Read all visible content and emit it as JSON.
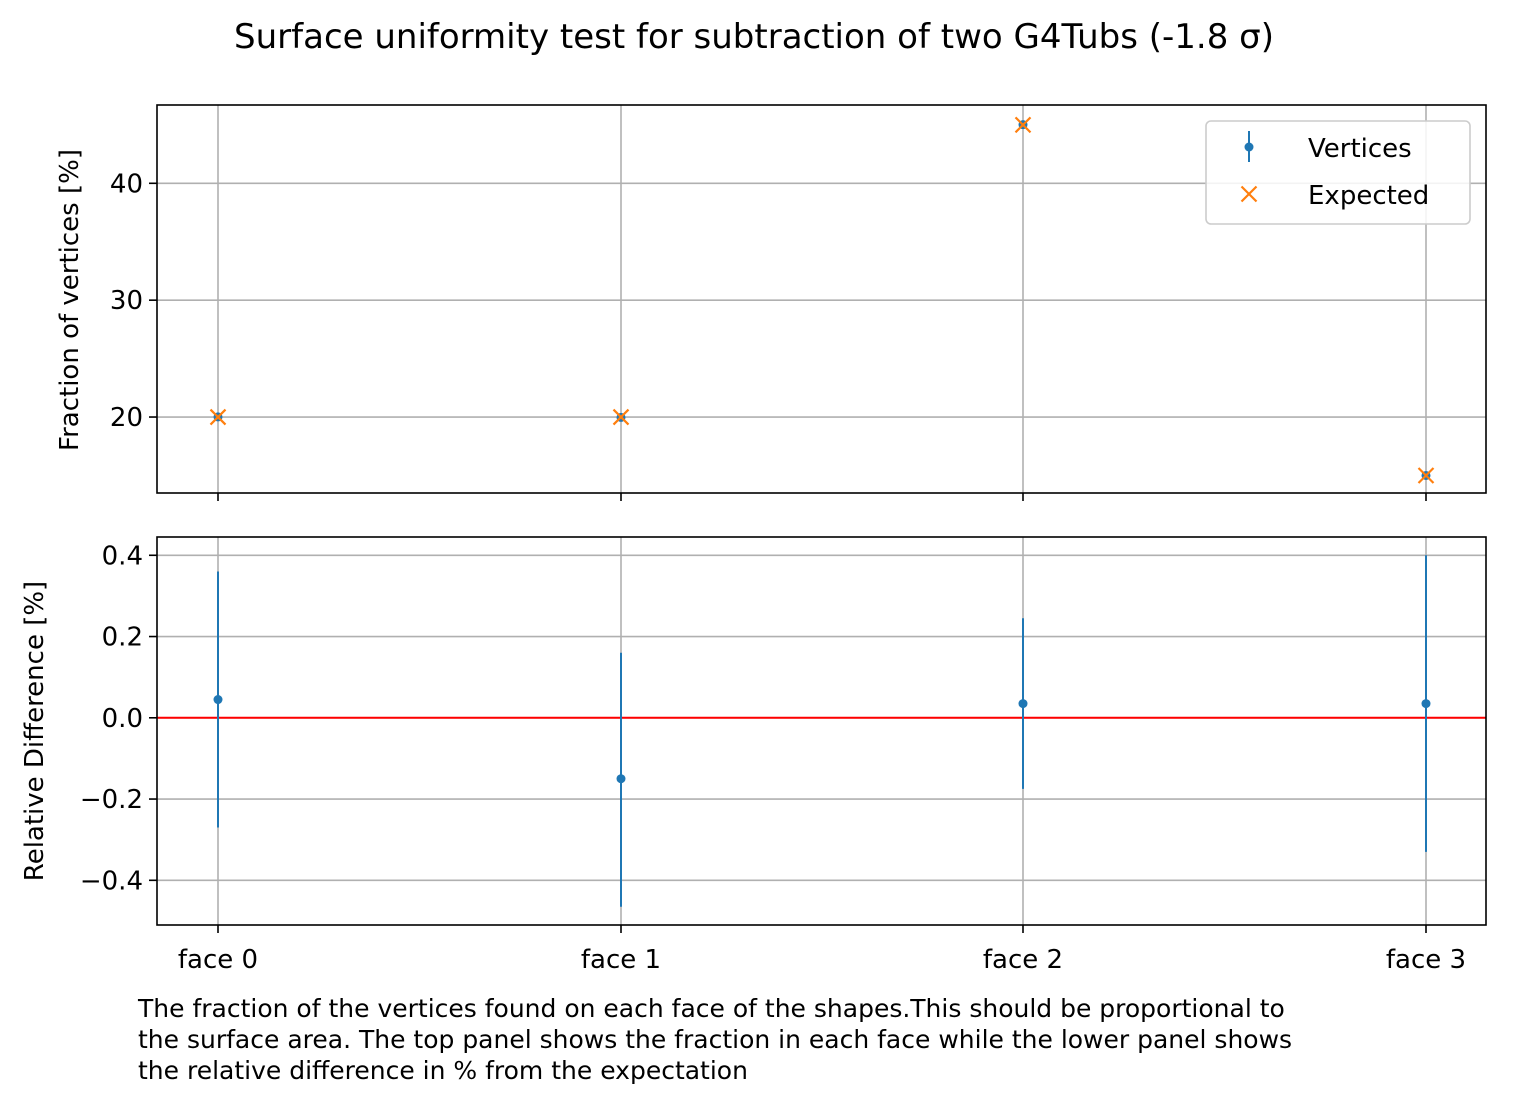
{
  "chart_data": {
    "title": "Surface uniformity test for subtraction of two G4Tubs (-1.8 σ)",
    "categories": [
      "face 0",
      "face 1",
      "face 2",
      "face 3"
    ],
    "panels": [
      {
        "type": "scatter",
        "ylabel": "Fraction of vertices [%]",
        "ylim": [
          13.5,
          46.7
        ],
        "yticks": [
          20,
          30,
          40
        ],
        "grid": true,
        "legend": {
          "placement": "upper right",
          "entries": [
            "Vertices",
            "Expected"
          ]
        },
        "series": [
          {
            "name": "Vertices",
            "marker": "dot",
            "color": "#1f77b4",
            "values": [
              20.01,
              19.97,
              45.02,
              15.0
            ],
            "errors": [
              0.06,
              0.06,
              0.1,
              0.05
            ]
          },
          {
            "name": "Expected",
            "marker": "x",
            "color": "#ff7f0e",
            "values": [
              20.0,
              20.0,
              45.0,
              15.0
            ]
          }
        ]
      },
      {
        "type": "scatter",
        "ylabel": "Relative Difference [%]",
        "ylim": [
          -0.51,
          0.445
        ],
        "yticks": [
          0.4,
          0.2,
          0.0,
          -0.2,
          -0.4
        ],
        "ytick_labels": [
          "0.4",
          "0.2",
          "0.0",
          "−0.2",
          "−0.4"
        ],
        "grid": true,
        "reference_line": {
          "y": 0.0,
          "color": "#ff0000"
        },
        "series": [
          {
            "marker": "dot",
            "color": "#1f77b4",
            "values": [
              0.045,
              -0.15,
              0.035,
              0.035
            ],
            "err_low": [
              -0.27,
              -0.465,
              -0.175,
              -0.33
            ],
            "err_high": [
              0.36,
              0.16,
              0.245,
              0.4
            ]
          }
        ]
      }
    ]
  },
  "caption": {
    "lines": [
      "The fraction of the vertices found on each face of the shapes.This should be proportional to",
      "the surface area. The top panel shows the fraction in each face while the lower panel shows",
      "the relative difference in % from the expectation"
    ]
  }
}
